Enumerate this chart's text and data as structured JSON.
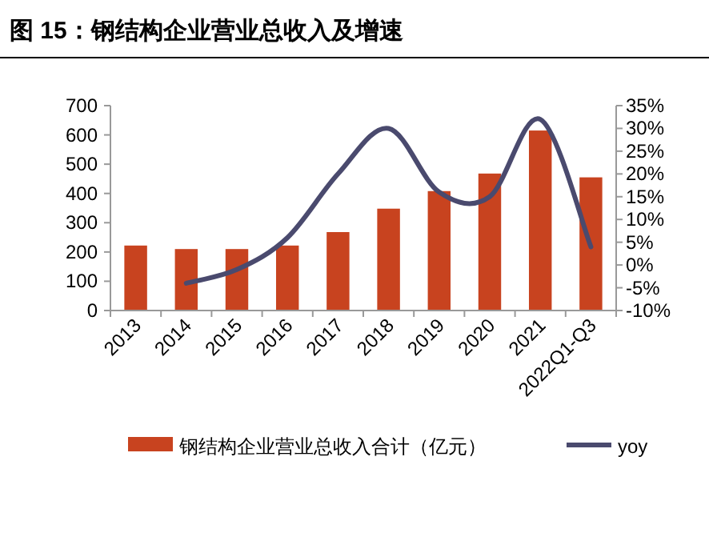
{
  "chart_data": {
    "type": "bar",
    "title": "图 15：钢结构企业营业总收入及增速",
    "categories": [
      "2013",
      "2014",
      "2015",
      "2016",
      "2017",
      "2018",
      "2019",
      "2020",
      "2021",
      "2022Q1-Q3"
    ],
    "series": [
      {
        "name": "钢结构企业营业总收入合计（亿元）",
        "color": "#c8431f",
        "values": [
          222,
          210,
          210,
          222,
          268,
          348,
          408,
          468,
          615,
          455
        ]
      },
      {
        "name": "yoy",
        "type": "line",
        "axis": "y2",
        "color": "#4a4a6e",
        "values": [
          null,
          -4,
          -1,
          6,
          20,
          30,
          16,
          15,
          32,
          4
        ]
      }
    ],
    "ylim": [
      0,
      700
    ],
    "yticks": [
      0,
      100,
      200,
      300,
      400,
      500,
      600,
      700
    ],
    "y2lim": [
      -10,
      35
    ],
    "y2ticks": [
      {
        "value": -10,
        "label": "-10%"
      },
      {
        "value": -5,
        "label": "-5%"
      },
      {
        "value": 0,
        "label": "0%"
      },
      {
        "value": 5,
        "label": "5%"
      },
      {
        "value": 10,
        "label": "10%"
      },
      {
        "value": 15,
        "label": "15%"
      },
      {
        "value": 20,
        "label": "20%"
      },
      {
        "value": 25,
        "label": "25%"
      },
      {
        "value": 30,
        "label": "30%"
      },
      {
        "value": 35,
        "label": "35%"
      }
    ],
    "grid": false,
    "legend": "bottom"
  }
}
